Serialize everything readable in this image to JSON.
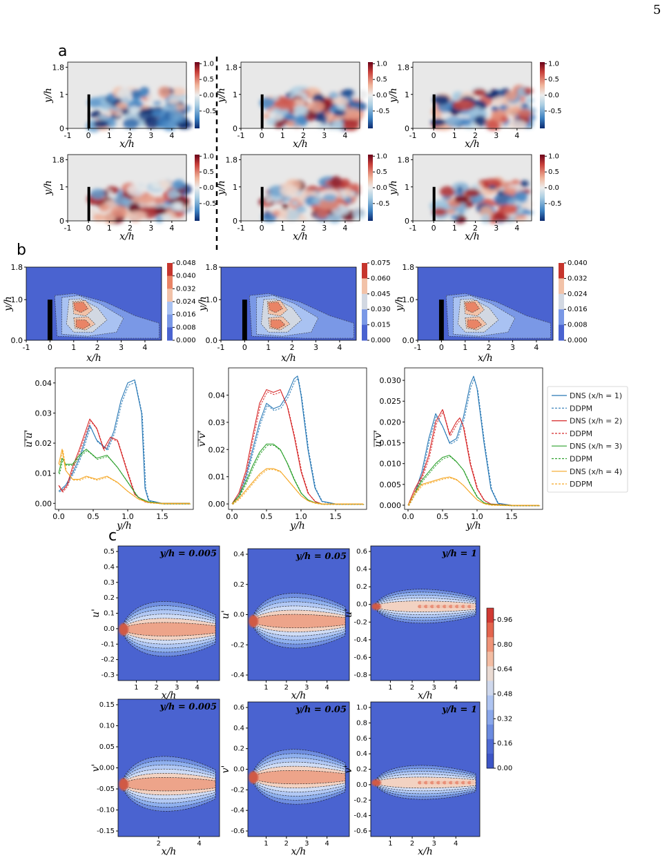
{
  "page": {
    "number": "5"
  },
  "panels": {
    "a": "a",
    "b": "b",
    "c": "c"
  },
  "section_a": {
    "xlabel": "x/h",
    "ylabel": "y/h",
    "xticks": [
      "-1",
      "0",
      "1",
      "2",
      "3",
      "4"
    ],
    "yticks": [
      "0",
      "1",
      "1.8"
    ],
    "colorbar_ticks": [
      "1.0",
      "0.5",
      "0.0",
      "-0.5"
    ],
    "fields": [
      {
        "seed": 1,
        "bias": -0.55
      },
      {
        "seed": 2,
        "bias": 0.0
      },
      {
        "seed": 3,
        "bias": -0.2
      },
      {
        "seed": 4,
        "bias": 0.15
      },
      {
        "seed": 5,
        "bias": 0.3
      },
      {
        "seed": 6,
        "bias": 0.05
      }
    ]
  },
  "section_b_maps": {
    "xlabel": "x/h",
    "ylabel": "y/h",
    "xticks": [
      "-1",
      "0",
      "1",
      "2",
      "3",
      "4"
    ],
    "yticks": [
      "0.0",
      "1.0",
      "1.8"
    ],
    "maps": [
      {
        "colorbar_ticks": [
          "0.048",
          "0.040",
          "0.032",
          "0.024",
          "0.016",
          "0.008",
          "0.000"
        ]
      },
      {
        "colorbar_ticks": [
          "0.075",
          "0.060",
          "0.045",
          "0.030",
          "0.015",
          "0.000"
        ]
      },
      {
        "colorbar_ticks": [
          "0.040",
          "0.032",
          "0.024",
          "0.016",
          "0.008",
          "0.000"
        ]
      }
    ]
  },
  "chart_data": [
    {
      "type": "line",
      "xlabel": "y/h",
      "ylabel": "u'u'",
      "xlim": [
        -0.05,
        1.95
      ],
      "ylim": [
        -0.002,
        0.045
      ],
      "xticks": [
        "0.0",
        "0.5",
        "1.0",
        "1.5"
      ],
      "yticks": [
        "0.00",
        "0.01",
        "0.02",
        "0.03",
        "0.04"
      ],
      "series": [
        {
          "name": "DNS (x/h = 1)",
          "color": "#2878b5",
          "x": [
            0,
            0.1,
            0.2,
            0.3,
            0.45,
            0.55,
            0.7,
            0.8,
            0.9,
            1.0,
            1.1,
            1.2,
            1.25,
            1.3,
            1.5,
            1.9
          ],
          "y": [
            0.004,
            0.006,
            0.01,
            0.015,
            0.026,
            0.021,
            0.018,
            0.024,
            0.034,
            0.04,
            0.041,
            0.03,
            0.005,
            0.001,
            0.0,
            0.0
          ]
        },
        {
          "name": "DNS (x/h = 2)",
          "color": "#d62728",
          "x": [
            0,
            0.05,
            0.12,
            0.2,
            0.3,
            0.45,
            0.55,
            0.65,
            0.75,
            0.85,
            1.0,
            1.1,
            1.25,
            1.5,
            1.9
          ],
          "y": [
            0.006,
            0.004,
            0.006,
            0.012,
            0.018,
            0.028,
            0.025,
            0.018,
            0.022,
            0.021,
            0.01,
            0.003,
            0.0005,
            0.0,
            0.0
          ]
        },
        {
          "name": "DNS (x/h = 3)",
          "color": "#2ca02c",
          "x": [
            0,
            0.05,
            0.1,
            0.2,
            0.3,
            0.4,
            0.55,
            0.7,
            0.85,
            1.0,
            1.15,
            1.3,
            1.5,
            1.9
          ],
          "y": [
            0.01,
            0.015,
            0.013,
            0.013,
            0.016,
            0.018,
            0.015,
            0.016,
            0.012,
            0.007,
            0.002,
            0.0005,
            0.0,
            0.0
          ]
        },
        {
          "name": "DNS (x/h = 4)",
          "color": "#f5a623",
          "x": [
            0,
            0.05,
            0.1,
            0.2,
            0.3,
            0.4,
            0.55,
            0.7,
            0.85,
            1.0,
            1.15,
            1.3,
            1.5,
            1.9
          ],
          "y": [
            0.013,
            0.018,
            0.011,
            0.008,
            0.008,
            0.009,
            0.008,
            0.009,
            0.007,
            0.004,
            0.0015,
            0.0003,
            0.0,
            0.0
          ]
        }
      ]
    },
    {
      "type": "line",
      "xlabel": "y/h",
      "ylabel": "v'v'",
      "xlim": [
        -0.05,
        1.95
      ],
      "ylim": [
        -0.002,
        0.05
      ],
      "xticks": [
        "0.0",
        "0.5",
        "1.0",
        "1.5"
      ],
      "yticks": [
        "0.00",
        "0.01",
        "0.02",
        "0.03",
        "0.04"
      ],
      "series": [
        {
          "name": "DNS (x/h = 1)",
          "color": "#2878b5",
          "x": [
            0,
            0.1,
            0.2,
            0.3,
            0.4,
            0.5,
            0.6,
            0.7,
            0.8,
            0.9,
            0.95,
            1.0,
            1.1,
            1.2,
            1.3,
            1.5,
            1.9
          ],
          "y": [
            0.0,
            0.003,
            0.01,
            0.02,
            0.03,
            0.037,
            0.035,
            0.036,
            0.04,
            0.046,
            0.047,
            0.04,
            0.02,
            0.006,
            0.001,
            0.0,
            0.0
          ]
        },
        {
          "name": "DNS (x/h = 2)",
          "color": "#d62728",
          "x": [
            0,
            0.1,
            0.2,
            0.3,
            0.4,
            0.5,
            0.6,
            0.7,
            0.8,
            0.9,
            1.0,
            1.1,
            1.2,
            1.3,
            1.5,
            1.9
          ],
          "y": [
            0.0,
            0.004,
            0.012,
            0.025,
            0.037,
            0.042,
            0.041,
            0.042,
            0.036,
            0.025,
            0.012,
            0.004,
            0.001,
            0.0,
            0.0,
            0.0
          ]
        },
        {
          "name": "DNS (x/h = 3)",
          "color": "#2ca02c",
          "x": [
            0,
            0.1,
            0.2,
            0.3,
            0.4,
            0.5,
            0.6,
            0.7,
            0.8,
            0.9,
            1.0,
            1.1,
            1.2,
            1.3,
            1.5,
            1.9
          ],
          "y": [
            0.0,
            0.003,
            0.008,
            0.014,
            0.019,
            0.022,
            0.022,
            0.02,
            0.015,
            0.009,
            0.004,
            0.0015,
            0.0005,
            0.0,
            0.0,
            0.0
          ]
        },
        {
          "name": "DNS (x/h = 4)",
          "color": "#f5a623",
          "x": [
            0,
            0.1,
            0.2,
            0.3,
            0.4,
            0.5,
            0.6,
            0.7,
            0.8,
            0.9,
            1.0,
            1.1,
            1.2,
            1.3,
            1.5,
            1.9
          ],
          "y": [
            0.0,
            0.002,
            0.005,
            0.008,
            0.011,
            0.013,
            0.013,
            0.012,
            0.009,
            0.006,
            0.003,
            0.0012,
            0.0004,
            0.0,
            0.0,
            0.0
          ]
        }
      ]
    },
    {
      "type": "line",
      "xlabel": "y/h",
      "ylabel": "u'v'",
      "xlim": [
        -0.05,
        1.95
      ],
      "ylim": [
        -0.001,
        0.033
      ],
      "xticks": [
        "0.0",
        "0.5",
        "1.0",
        "1.5"
      ],
      "yticks": [
        "0.000",
        "0.005",
        "0.010",
        "0.015",
        "0.020",
        "0.025",
        "0.030"
      ],
      "series": [
        {
          "name": "DNS (x/h = 1)",
          "color": "#2878b5",
          "x": [
            0,
            0.1,
            0.2,
            0.3,
            0.4,
            0.5,
            0.6,
            0.7,
            0.8,
            0.9,
            0.95,
            1.0,
            1.1,
            1.2,
            1.3,
            1.5,
            1.9
          ],
          "y": [
            0.0,
            0.003,
            0.008,
            0.016,
            0.022,
            0.019,
            0.015,
            0.016,
            0.021,
            0.029,
            0.031,
            0.028,
            0.015,
            0.004,
            0.0005,
            0.0,
            0.0
          ]
        },
        {
          "name": "DNS (x/h = 2)",
          "color": "#d62728",
          "x": [
            0,
            0.1,
            0.2,
            0.3,
            0.4,
            0.5,
            0.6,
            0.7,
            0.75,
            0.8,
            0.9,
            1.0,
            1.1,
            1.2,
            1.5,
            1.9
          ],
          "y": [
            0.0,
            0.004,
            0.007,
            0.012,
            0.02,
            0.023,
            0.017,
            0.02,
            0.021,
            0.019,
            0.01,
            0.004,
            0.0012,
            0.0003,
            0.0,
            0.0
          ]
        },
        {
          "name": "DNS (x/h = 3)",
          "color": "#2ca02c",
          "x": [
            0,
            0.1,
            0.2,
            0.3,
            0.4,
            0.5,
            0.6,
            0.7,
            0.8,
            0.9,
            1.0,
            1.1,
            1.2,
            1.5,
            1.9
          ],
          "y": [
            0.0,
            0.003,
            0.006,
            0.008,
            0.01,
            0.0115,
            0.012,
            0.0105,
            0.0085,
            0.005,
            0.002,
            0.0006,
            0.0002,
            0.0,
            0.0
          ]
        },
        {
          "name": "DNS (x/h = 4)",
          "color": "#f5a623",
          "x": [
            0,
            0.1,
            0.2,
            0.3,
            0.4,
            0.5,
            0.6,
            0.7,
            0.8,
            0.9,
            1.0,
            1.1,
            1.2,
            1.5,
            1.9
          ],
          "y": [
            0.0,
            0.003,
            0.005,
            0.0055,
            0.006,
            0.0065,
            0.0068,
            0.0062,
            0.0048,
            0.003,
            0.0013,
            0.0004,
            0.0001,
            0.0,
            0.0
          ]
        }
      ]
    }
  ],
  "legend": [
    {
      "label": "DNS (x/h = 1)",
      "color": "#2878b5",
      "dashed": false
    },
    {
      "label": "DDPM",
      "color": "#2878b5",
      "dashed": true
    },
    {
      "label": "DNS (x/h = 2)",
      "color": "#d62728",
      "dashed": false
    },
    {
      "label": "DDPM",
      "color": "#d62728",
      "dashed": true
    },
    {
      "label": "DNS (x/h = 3)",
      "color": "#2ca02c",
      "dashed": false
    },
    {
      "label": "DDPM",
      "color": "#2ca02c",
      "dashed": true
    },
    {
      "label": "DNS (x/h = 4)",
      "color": "#f5a623",
      "dashed": false
    },
    {
      "label": "DDPM",
      "color": "#f5a623",
      "dashed": true
    }
  ],
  "section_c": {
    "colorbar_ticks": [
      "0.96",
      "0.80",
      "0.64",
      "0.48",
      "0.32",
      "0.16",
      "0.00"
    ],
    "xlabel": "x/h",
    "panels": [
      {
        "title": "y/h = 0.005",
        "ylabel": "u'",
        "yticks": [
          "0.5",
          "0.4",
          "0.3",
          "0.2",
          "0.1",
          "0.0",
          "-0.1",
          "-0.2",
          "-0.3"
        ],
        "xticks": [
          "1",
          "2",
          "3",
          "4"
        ]
      },
      {
        "title": "y/h = 0.05",
        "ylabel": "u'",
        "yticks": [
          "0.4",
          "0.2",
          "0.0",
          "-0.2",
          "-0.4"
        ],
        "xticks": [
          "1",
          "2",
          "3",
          "4"
        ]
      },
      {
        "title": "y/h = 1",
        "ylabel": "u'",
        "yticks": [
          "0.6",
          "0.4",
          "0.2",
          "0.0",
          "-0.2",
          "-0.4",
          "-0.6",
          "-0.8"
        ],
        "xticks": [
          "1",
          "2",
          "3",
          "4"
        ]
      },
      {
        "title": "y/h = 0.005",
        "ylabel": "v'",
        "yticks": [
          "0.15",
          "0.10",
          "0.05",
          "0.00",
          "-0.05",
          "-0.10",
          "-0.15"
        ],
        "xticks": [
          "2",
          "4"
        ]
      },
      {
        "title": "y/h = 0.05",
        "ylabel": "v'",
        "yticks": [
          "0.6",
          "0.4",
          "0.2",
          "0.0",
          "-0.2",
          "-0.4",
          "-0.6"
        ],
        "xticks": [
          "1",
          "2",
          "3",
          "4"
        ]
      },
      {
        "title": "y/h = 1",
        "ylabel": "v'",
        "yticks": [
          "1.0",
          "0.8",
          "0.6",
          "0.4",
          "0.2",
          "0.0",
          "-0.2",
          "-0.4",
          "-0.6"
        ],
        "xticks": [
          "1",
          "2",
          "3",
          "4"
        ]
      }
    ]
  }
}
